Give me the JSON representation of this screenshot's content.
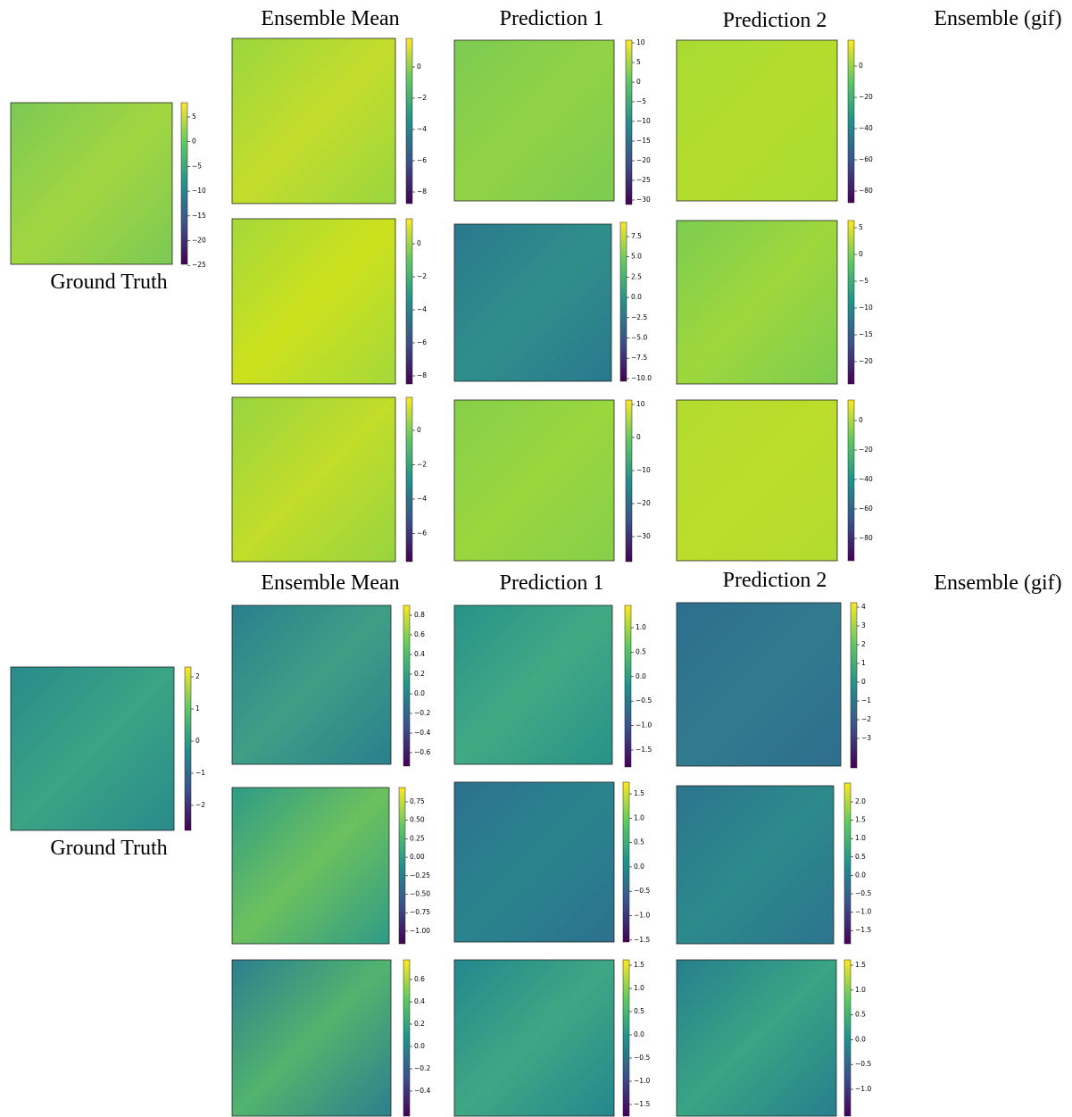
{
  "sections": [
    {
      "headers": [
        "Ensemble Mean",
        "Prediction 1",
        "Prediction 2",
        "Ensemble (gif)"
      ],
      "ground_truth": {
        "label": "Ground Truth",
        "colorbar_ticks": [
          "5",
          "0",
          "−5",
          "−10",
          "−15",
          "−20",
          "−25"
        ]
      },
      "rows": [
        [
          {
            "colorbar_ticks": [
              "0",
              "−2",
              "−4",
              "−6",
              "−8"
            ]
          },
          {
            "colorbar_ticks": [
              "10",
              "5",
              "0",
              "−5",
              "−10",
              "−15",
              "−20",
              "−25",
              "−30"
            ]
          },
          {
            "colorbar_ticks": [
              "0",
              "−20",
              "−40",
              "−60",
              "−80"
            ]
          }
        ],
        [
          {
            "colorbar_ticks": [
              "0",
              "−2",
              "−4",
              "−6",
              "−8"
            ]
          },
          {
            "colorbar_ticks": [
              "7.5",
              "5.0",
              "2.5",
              "0.0",
              "−2.5",
              "−5.0",
              "−7.5",
              "−10.0"
            ]
          },
          {
            "colorbar_ticks": [
              "5",
              "0",
              "−5",
              "−10",
              "−15",
              "−20"
            ]
          }
        ],
        [
          {
            "colorbar_ticks": [
              "0",
              "−2",
              "−4",
              "−6"
            ]
          },
          {
            "colorbar_ticks": [
              "10",
              "0",
              "−10",
              "−20",
              "−30"
            ]
          },
          {
            "colorbar_ticks": [
              "0",
              "−20",
              "−40",
              "−60",
              "−80"
            ]
          }
        ]
      ]
    },
    {
      "headers": [
        "Ensemble Mean",
        "Prediction 1",
        "Prediction 2",
        "Ensemble (gif)"
      ],
      "ground_truth": {
        "label": "Ground Truth",
        "colorbar_ticks": [
          "2",
          "1",
          "0",
          "−1",
          "−2"
        ]
      },
      "rows": [
        [
          {
            "colorbar_ticks": [
              "0.8",
              "0.6",
              "0.4",
              "0.2",
              "0.0",
              "−0.2",
              "−0.4",
              "−0.6"
            ]
          },
          {
            "colorbar_ticks": [
              "1.0",
              "0.5",
              "0.0",
              "−0.5",
              "−1.0",
              "−1.5"
            ]
          },
          {
            "colorbar_ticks": [
              "4",
              "3",
              "2",
              "1",
              "0",
              "−1",
              "−2",
              "−3"
            ]
          }
        ],
        [
          {
            "colorbar_ticks": [
              "0.75",
              "0.50",
              "0.25",
              "0.00",
              "−0.25",
              "−0.50",
              "−0.75",
              "−1.00"
            ]
          },
          {
            "colorbar_ticks": [
              "1.5",
              "1.0",
              "0.5",
              "0.0",
              "−0.5",
              "−1.0",
              "−1.5"
            ]
          },
          {
            "colorbar_ticks": [
              "2.0",
              "1.5",
              "1.0",
              "0.5",
              "0.0",
              "−0.5",
              "−1.0",
              "−1.5"
            ]
          }
        ],
        [
          {
            "colorbar_ticks": [
              "0.6",
              "0.4",
              "0.2",
              "0.0",
              "−0.2",
              "−0.4"
            ]
          },
          {
            "colorbar_ticks": [
              "1.5",
              "1.0",
              "0.5",
              "0.0",
              "−0.5",
              "−1.0",
              "−1.5"
            ]
          },
          {
            "colorbar_ticks": [
              "1.5",
              "1.0",
              "0.5",
              "0.0",
              "−0.5",
              "−1.0"
            ]
          }
        ]
      ]
    }
  ]
}
